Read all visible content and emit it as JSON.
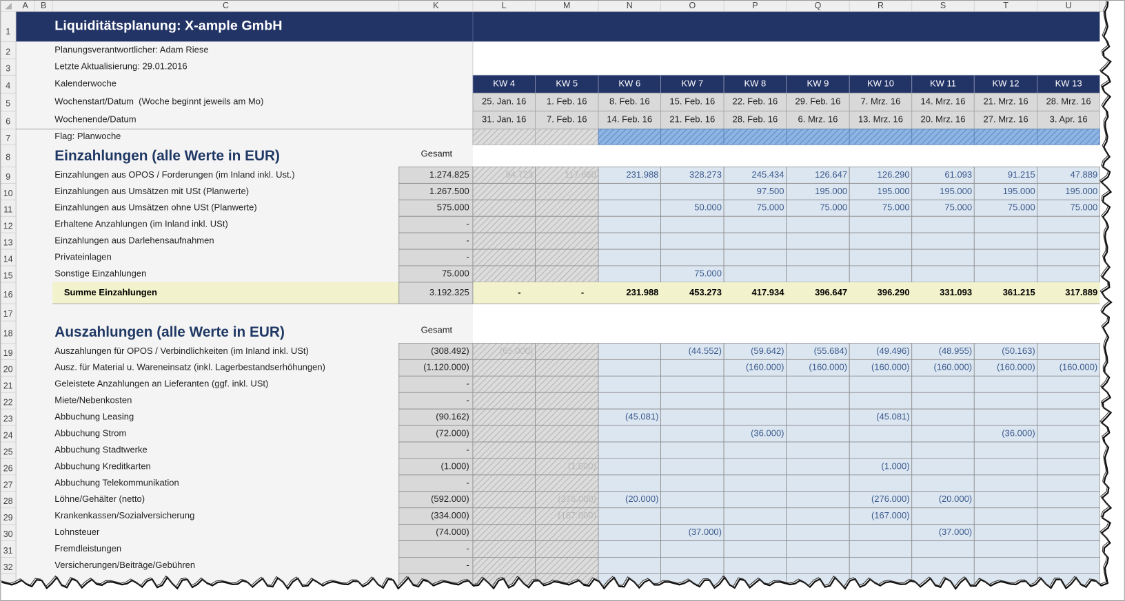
{
  "sheet": {
    "columns": [
      "A",
      "B",
      "C",
      "K",
      "L",
      "M",
      "N",
      "O",
      "P",
      "Q",
      "R",
      "S",
      "T",
      "U"
    ],
    "rows": [
      "1",
      "2",
      "3",
      "4",
      "5",
      "6",
      "7",
      "8",
      "9",
      "10",
      "11",
      "12",
      "13",
      "14",
      "15",
      "16",
      "17",
      "18",
      "19",
      "20",
      "21",
      "22",
      "23",
      "24",
      "25",
      "26",
      "27",
      "28",
      "29",
      "30",
      "31",
      "32"
    ]
  },
  "title": "Liquiditätsplanung: X-ample GmbH",
  "info": {
    "responsible": "Planungsverantwortlicher: Adam Riese",
    "updated": "Letzte Aktualisierung: 29.01.2016"
  },
  "calendar": {
    "week_label": "Kalenderwoche",
    "weeks": [
      "KW 4",
      "KW 5",
      "KW 6",
      "KW 7",
      "KW 8",
      "KW 9",
      "KW 10",
      "KW 11",
      "KW 12",
      "KW 13"
    ],
    "start_label": "Wochenstart/Datum  (Woche beginnt jeweils am Mo)",
    "starts": [
      "25. Jan. 16",
      "1. Feb. 16",
      "8. Feb. 16",
      "15. Feb. 16",
      "22. Feb. 16",
      "29. Feb. 16",
      "7. Mrz. 16",
      "14. Mrz. 16",
      "21. Mrz. 16",
      "28. Mrz. 16"
    ],
    "end_label": "Wochenende/Datum",
    "ends": [
      "31. Jan. 16",
      "7. Feb. 16",
      "14. Feb. 16",
      "21. Feb. 16",
      "28. Feb. 16",
      "6. Mrz. 16",
      "13. Mrz. 16",
      "20. Mrz. 16",
      "27. Mrz. 16",
      "3. Apr. 16"
    ],
    "flag_label": "Flag: Planwoche"
  },
  "receipts": {
    "heading": "Einzahlungen (alle Werte in EUR)",
    "total_header": "Gesamt",
    "rows": [
      {
        "label": "Einzahlungen aus OPOS / Forderungen (im Inland inkl. Ust.)",
        "total": "1.274.825",
        "cells": [
          "94.723",
          "117.660",
          "231.988",
          "328.273",
          "245.434",
          "126.647",
          "126.290",
          "61.093",
          "91.215",
          "47.889"
        ]
      },
      {
        "label": "Einzahlungen aus Umsätzen mit USt (Planwerte)",
        "total": "1.267.500",
        "cells": [
          null,
          null,
          null,
          null,
          "97.500",
          "195.000",
          "195.000",
          "195.000",
          "195.000",
          "195.000"
        ]
      },
      {
        "label": "Einzahlungen aus Umsätzen ohne USt (Planwerte)",
        "total": "575.000",
        "cells": [
          null,
          null,
          null,
          "50.000",
          "75.000",
          "75.000",
          "75.000",
          "75.000",
          "75.000",
          "75.000"
        ]
      },
      {
        "label": "Erhaltene Anzahlungen (im Inland inkl. USt)",
        "total": "-",
        "cells": [
          null,
          null,
          null,
          null,
          null,
          null,
          null,
          null,
          null,
          null
        ]
      },
      {
        "label": "Einzahlungen aus Darlehensaufnahmen",
        "total": "-",
        "cells": [
          null,
          null,
          null,
          null,
          null,
          null,
          null,
          null,
          null,
          null
        ]
      },
      {
        "label": "Privateinlagen",
        "total": "-",
        "cells": [
          null,
          null,
          null,
          null,
          null,
          null,
          null,
          null,
          null,
          null
        ]
      },
      {
        "label": "Sonstige Einzahlungen",
        "total": "75.000",
        "cells": [
          null,
          null,
          null,
          "75.000",
          null,
          null,
          null,
          null,
          null,
          null
        ]
      }
    ],
    "sum": {
      "label": "Summe Einzahlungen",
      "total": "3.192.325",
      "cells": [
        "-",
        "-",
        "231.988",
        "453.273",
        "417.934",
        "396.647",
        "396.290",
        "331.093",
        "361.215",
        "317.889"
      ]
    }
  },
  "payments": {
    "heading": "Auszahlungen (alle Werte in EUR)",
    "total_header": "Gesamt",
    "rows": [
      {
        "label": "Auszahlungen für OPOS / Verbindlichkeiten (im Inland inkl. USt)",
        "total": "(308.492)",
        "cells": [
          "(65.000)",
          null,
          null,
          "(44.552)",
          "(59.642)",
          "(55.684)",
          "(49.496)",
          "(48.955)",
          "(50.163)",
          null
        ]
      },
      {
        "label": "Ausz. für Material u. Wareneinsatz (inkl. Lagerbestandserhöhungen)",
        "total": "(1.120.000)",
        "cells": [
          null,
          null,
          null,
          null,
          "(160.000)",
          "(160.000)",
          "(160.000)",
          "(160.000)",
          "(160.000)",
          "(160.000)"
        ]
      },
      {
        "label": "Geleistete Anzahlungen an Lieferanten (ggf. inkl. USt)",
        "total": "-",
        "cells": [
          null,
          null,
          null,
          null,
          null,
          null,
          null,
          null,
          null,
          null
        ]
      },
      {
        "label": "Miete/Nebenkosten",
        "total": "-",
        "cells": [
          null,
          null,
          null,
          null,
          null,
          null,
          null,
          null,
          null,
          null
        ]
      },
      {
        "label": "Abbuchung Leasing",
        "total": "(90.162)",
        "cells": [
          null,
          null,
          "(45.081)",
          null,
          null,
          null,
          "(45.081)",
          null,
          null,
          null
        ]
      },
      {
        "label": "Abbuchung Strom",
        "total": "(72.000)",
        "cells": [
          null,
          null,
          null,
          null,
          "(36.000)",
          null,
          null,
          null,
          "(36.000)",
          null
        ]
      },
      {
        "label": "Abbuchung Stadtwerke",
        "total": "-",
        "cells": [
          null,
          null,
          null,
          null,
          null,
          null,
          null,
          null,
          null,
          null
        ]
      },
      {
        "label": "Abbuchung Kreditkarten",
        "total": "(1.000)",
        "cells": [
          null,
          "(1.000)",
          null,
          null,
          null,
          null,
          "(1.000)",
          null,
          null,
          null
        ]
      },
      {
        "label": "Abbuchung Telekommunikation",
        "total": "-",
        "cells": [
          null,
          null,
          null,
          null,
          null,
          null,
          null,
          null,
          null,
          null
        ]
      },
      {
        "label": "Löhne/Gehälter (netto)",
        "total": "(592.000)",
        "cells": [
          null,
          "(276.000)",
          "(20.000)",
          null,
          null,
          null,
          "(276.000)",
          "(20.000)",
          null,
          null
        ]
      },
      {
        "label": "Krankenkassen/Sozialversicherung",
        "total": "(334.000)",
        "cells": [
          null,
          "(167.000)",
          null,
          null,
          null,
          null,
          "(167.000)",
          null,
          null,
          null
        ]
      },
      {
        "label": "Lohnsteuer",
        "total": "(74.000)",
        "cells": [
          null,
          null,
          null,
          "(37.000)",
          null,
          null,
          null,
          "(37.000)",
          null,
          null
        ]
      },
      {
        "label": "Fremdleistungen",
        "total": "-",
        "cells": [
          null,
          null,
          null,
          null,
          null,
          null,
          null,
          null,
          null,
          null
        ]
      },
      {
        "label": "Versicherungen/Beiträge/Gebühren",
        "total": "-",
        "cells": [
          null,
          null,
          null,
          null,
          null,
          null,
          null,
          null,
          null,
          null
        ]
      }
    ]
  }
}
